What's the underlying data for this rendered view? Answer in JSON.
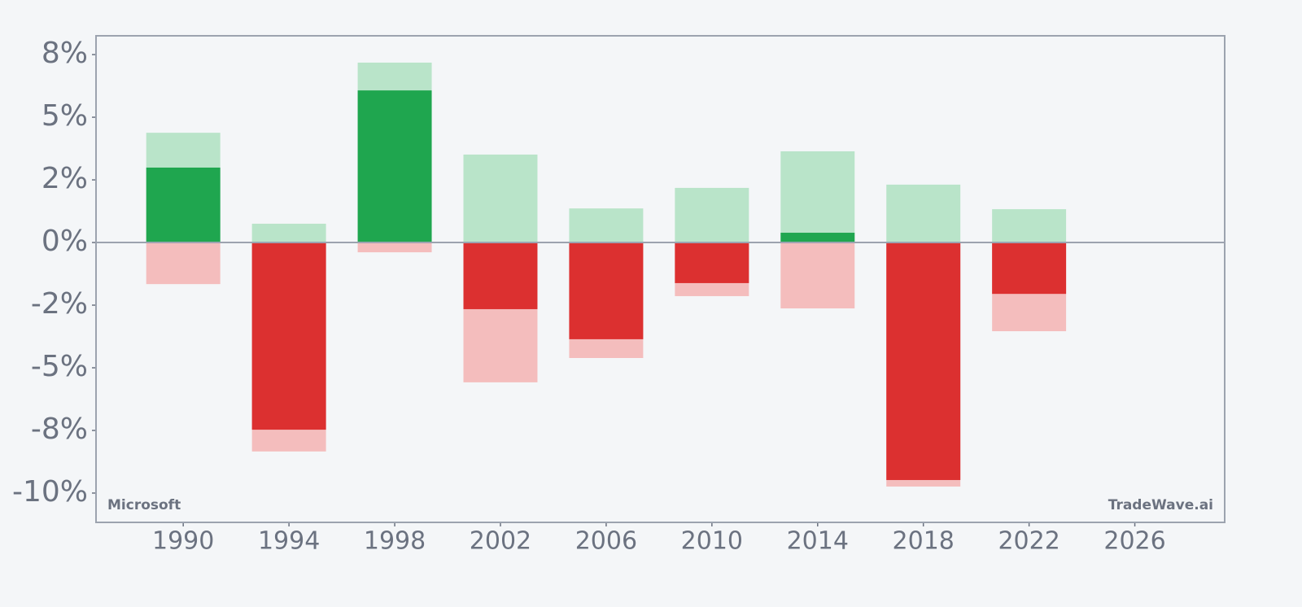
{
  "chart_data": {
    "type": "bar",
    "x": [
      1990,
      1994,
      1998,
      2002,
      2006,
      2010,
      2014,
      2018,
      2022
    ],
    "series": [
      {
        "color": "#b9e4c9",
        "values": [
          4.38,
          0.75,
          7.18,
          3.51,
          1.36,
          2.18,
          3.64,
          2.31,
          1.33
        ]
      },
      {
        "color": "#f4bdbd",
        "values": [
          -1.66,
          -8.34,
          -0.39,
          -5.58,
          -4.61,
          -2.14,
          -2.63,
          -9.74,
          -3.54
        ]
      },
      {
        "positive_color": "#1fa64f",
        "negative_color": "#dc3030",
        "values": [
          2.99,
          -7.47,
          6.07,
          -2.66,
          -3.86,
          -1.62,
          0.39,
          -9.48,
          -2.05
        ]
      }
    ],
    "xlim": [
      1986.7,
      2029.4
    ],
    "xticks": [
      1990,
      1994,
      1998,
      2002,
      2006,
      2010,
      2014,
      2018,
      2022,
      2026
    ],
    "ylim": [
      -11.17,
      8.25
    ],
    "yticks": [
      {
        "value": 7.5,
        "label": "8%"
      },
      {
        "value": 5,
        "label": "5%"
      },
      {
        "value": 2.5,
        "label": "2%"
      },
      {
        "value": 0,
        "label": "0%"
      },
      {
        "value": -2.5,
        "label": "-2%"
      },
      {
        "value": -5,
        "label": "-5%"
      },
      {
        "value": -7.5,
        "label": "-8%"
      },
      {
        "value": -10,
        "label": "-10%"
      }
    ],
    "bar_width": 2.8,
    "annotations": [
      "Microsoft",
      "TradeWave.ai"
    ]
  }
}
